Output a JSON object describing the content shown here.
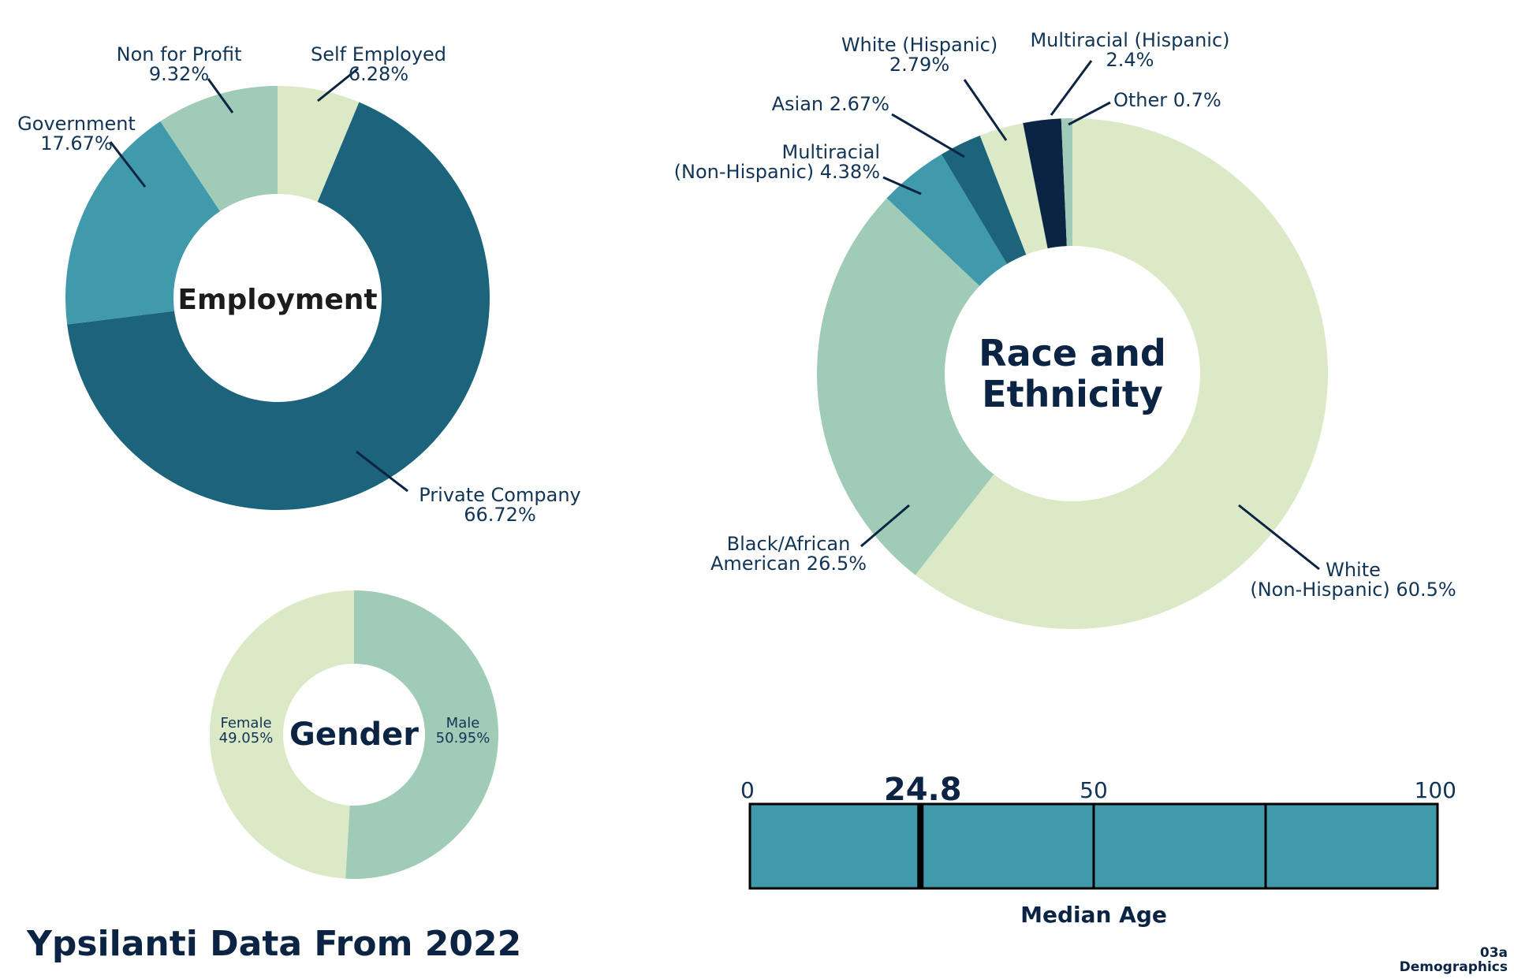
{
  "page_title": "Ypsilanti Data From 2022",
  "section_tag": {
    "line1": "03a",
    "line2": "Demographics"
  },
  "colors": {
    "dark_teal": "#1b647c",
    "teal": "#409aab",
    "sage": "#a0cbb6",
    "pale_green": "#dce9c7",
    "navy": "#0c2444",
    "label_navy": "#123456"
  },
  "chart_data": [
    {
      "id": "employment",
      "type": "pie",
      "title": "Employment",
      "slices": [
        {
          "label_lines": [
            "Self Employed",
            "6.28%"
          ],
          "value": 6.28,
          "color": "#dce9c7"
        },
        {
          "label_lines": [
            "Private Company",
            "66.72%"
          ],
          "value": 66.72,
          "color": "#1b647c"
        },
        {
          "label_lines": [
            "Government",
            "17.67%"
          ],
          "value": 17.67,
          "color": "#409aab"
        },
        {
          "label_lines": [
            "Non for Profit",
            "9.32%"
          ],
          "value": 9.32,
          "color": "#a0cbb6"
        }
      ]
    },
    {
      "id": "race",
      "type": "pie",
      "title_lines": [
        "Race and",
        "Ethnicity"
      ],
      "slices": [
        {
          "label_lines": [
            "White",
            "(Non-Hispanic) 60.5%"
          ],
          "value": 60.5,
          "color": "#dce9c7"
        },
        {
          "label_lines": [
            "Black/African",
            "American 26.5%"
          ],
          "value": 26.5,
          "color": "#a0cbb6"
        },
        {
          "label_lines": [
            "Multiracial",
            "(Non-Hispanic) 4.38%"
          ],
          "value": 4.38,
          "color": "#409aab"
        },
        {
          "label_lines": [
            "Asian 2.67%"
          ],
          "value": 2.67,
          "color": "#1b647c"
        },
        {
          "label_lines": [
            "White (Hispanic)",
            "2.79%"
          ],
          "value": 2.79,
          "color": "#dce9c7"
        },
        {
          "label_lines": [
            "Multiracial (Hispanic)",
            "2.4%"
          ],
          "value": 2.4,
          "color": "#0c2444"
        },
        {
          "label_lines": [
            "Other 0.7%"
          ],
          "value": 0.7,
          "color": "#a0cbb6"
        }
      ]
    },
    {
      "id": "gender",
      "type": "pie",
      "title": "Gender",
      "slices": [
        {
          "label_lines": [
            "Male",
            "50.95%"
          ],
          "value": 50.95,
          "color": "#a0cbb6"
        },
        {
          "label_lines": [
            "Female",
            "49.05%"
          ],
          "value": 49.05,
          "color": "#dce9c7"
        }
      ]
    },
    {
      "id": "median_age",
      "type": "bar",
      "xlabel": "Median Age",
      "xlim": [
        0,
        100
      ],
      "ticks": [
        "0",
        "50",
        "100"
      ],
      "value": 24.8,
      "value_label": "24.8",
      "fill_color": "#409aab"
    }
  ]
}
